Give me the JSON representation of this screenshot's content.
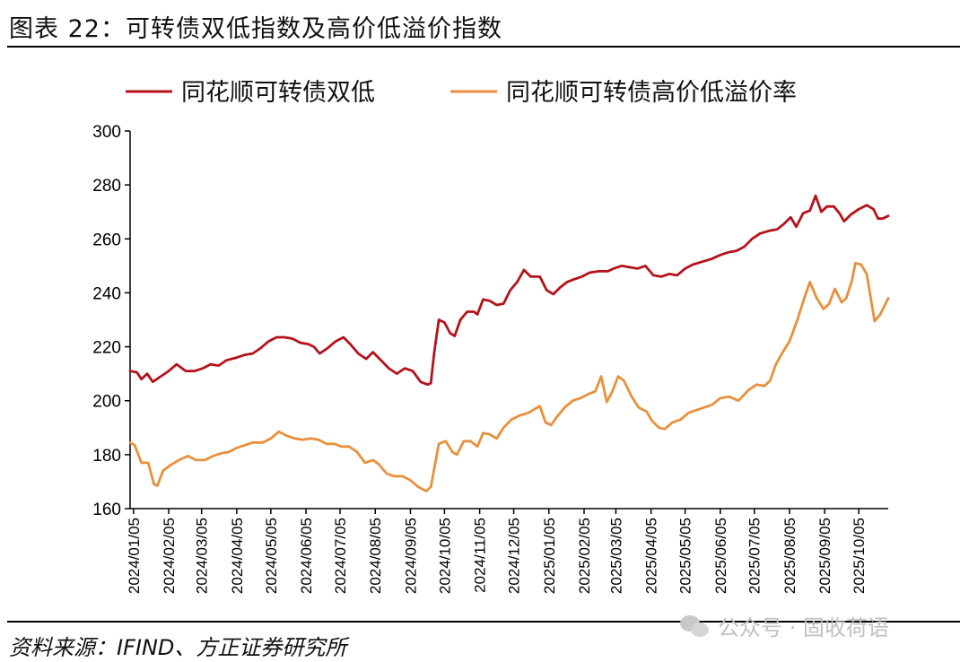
{
  "figure": {
    "title": "图表 22：可转债双低指数及高价低溢价指数",
    "source": "资料来源：IFIND、方正证券研究所",
    "watermark": "公众号 · 固收荷语"
  },
  "colors": {
    "series_dual_low": "#b5121b",
    "series_high_price_low_premium": "#e8903c",
    "axis": "#000000"
  },
  "chart_data": {
    "type": "line",
    "title": "",
    "xlabel": "",
    "ylabel": "",
    "ylim": [
      160,
      300
    ],
    "yticks": [
      160,
      180,
      200,
      220,
      240,
      260,
      280,
      300
    ],
    "x_range": [
      "2024-01-02",
      "2025-10-31"
    ],
    "xtick_labels": [
      "2024/01/05",
      "2024/02/05",
      "2024/03/05",
      "2024/04/05",
      "2024/05/05",
      "2024/06/05",
      "2024/07/05",
      "2024/08/05",
      "2024/09/05",
      "2024/10/05",
      "2024/11/05",
      "2024/12/05",
      "2025/01/05",
      "2025/02/05",
      "2025/03/05",
      "2025/04/05",
      "2025/05/05",
      "2025/06/05",
      "2025/07/05",
      "2025/08/05",
      "2025/09/05",
      "2025/10/05"
    ],
    "grid": false,
    "legend": "top",
    "series": [
      {
        "name": "同花顺可转债双低",
        "points": [
          [
            "2024-01-02",
            211
          ],
          [
            "2024-01-08",
            210.5
          ],
          [
            "2024-01-12",
            208
          ],
          [
            "2024-01-17",
            210
          ],
          [
            "2024-01-22",
            207
          ],
          [
            "2024-01-29",
            209
          ],
          [
            "2024-02-05",
            211
          ],
          [
            "2024-02-12",
            213.5
          ],
          [
            "2024-02-20",
            211
          ],
          [
            "2024-02-28",
            211
          ],
          [
            "2024-03-06",
            212
          ],
          [
            "2024-03-13",
            213.5
          ],
          [
            "2024-03-20",
            213
          ],
          [
            "2024-03-27",
            215
          ],
          [
            "2024-04-05",
            216
          ],
          [
            "2024-04-12",
            217
          ],
          [
            "2024-04-19",
            217.5
          ],
          [
            "2024-04-26",
            219.5
          ],
          [
            "2024-05-03",
            222
          ],
          [
            "2024-05-10",
            223.5
          ],
          [
            "2024-05-17",
            223.5
          ],
          [
            "2024-05-24",
            223
          ],
          [
            "2024-05-31",
            221.5
          ],
          [
            "2024-06-07",
            221
          ],
          [
            "2024-06-12",
            220
          ],
          [
            "2024-06-17",
            217.5
          ],
          [
            "2024-06-24",
            219.5
          ],
          [
            "2024-07-01",
            222
          ],
          [
            "2024-07-08",
            223.5
          ],
          [
            "2024-07-14",
            221
          ],
          [
            "2024-07-21",
            217.5
          ],
          [
            "2024-07-28",
            215.5
          ],
          [
            "2024-08-03",
            218
          ],
          [
            "2024-08-10",
            215
          ],
          [
            "2024-08-17",
            212
          ],
          [
            "2024-08-24",
            210
          ],
          [
            "2024-08-31",
            212
          ],
          [
            "2024-09-07",
            211
          ],
          [
            "2024-09-14",
            207
          ],
          [
            "2024-09-20",
            206
          ],
          [
            "2024-09-23",
            206.5
          ],
          [
            "2024-09-26",
            218
          ],
          [
            "2024-09-30",
            230
          ],
          [
            "2024-10-05",
            229
          ],
          [
            "2024-10-10",
            225
          ],
          [
            "2024-10-14",
            224
          ],
          [
            "2024-10-19",
            230
          ],
          [
            "2024-10-25",
            233
          ],
          [
            "2024-10-31",
            233
          ],
          [
            "2024-11-03",
            232
          ],
          [
            "2024-11-08",
            237.5
          ],
          [
            "2024-11-14",
            237
          ],
          [
            "2024-11-20",
            235.5
          ],
          [
            "2024-11-26",
            236
          ],
          [
            "2024-12-02",
            241
          ],
          [
            "2024-12-08",
            244
          ],
          [
            "2024-12-14",
            248.5
          ],
          [
            "2024-12-20",
            246
          ],
          [
            "2024-12-28",
            246
          ],
          [
            "2025-01-03",
            241
          ],
          [
            "2025-01-09",
            239.5
          ],
          [
            "2025-01-15",
            242
          ],
          [
            "2025-01-21",
            244
          ],
          [
            "2025-01-27",
            245
          ],
          [
            "2025-02-03",
            246
          ],
          [
            "2025-02-10",
            247.5
          ],
          [
            "2025-02-18",
            248
          ],
          [
            "2025-02-26",
            248
          ],
          [
            "2025-03-03",
            249
          ],
          [
            "2025-03-10",
            250
          ],
          [
            "2025-03-17",
            249.5
          ],
          [
            "2025-03-24",
            249
          ],
          [
            "2025-03-31",
            250
          ],
          [
            "2025-04-07",
            246.5
          ],
          [
            "2025-04-14",
            246
          ],
          [
            "2025-04-21",
            247
          ],
          [
            "2025-04-28",
            246.5
          ],
          [
            "2025-05-05",
            249
          ],
          [
            "2025-05-12",
            250.5
          ],
          [
            "2025-05-20",
            251.5
          ],
          [
            "2025-05-28",
            252.5
          ],
          [
            "2025-06-05",
            254
          ],
          [
            "2025-06-12",
            255
          ],
          [
            "2025-06-19",
            255.5
          ],
          [
            "2025-06-26",
            257
          ],
          [
            "2025-07-03",
            260
          ],
          [
            "2025-07-10",
            262
          ],
          [
            "2025-07-18",
            263
          ],
          [
            "2025-07-25",
            263.5
          ],
          [
            "2025-07-31",
            265.5
          ],
          [
            "2025-08-06",
            268
          ],
          [
            "2025-08-11",
            264.5
          ],
          [
            "2025-08-17",
            269.5
          ],
          [
            "2025-08-23",
            270.5
          ],
          [
            "2025-08-28",
            276
          ],
          [
            "2025-09-02",
            270
          ],
          [
            "2025-09-07",
            272
          ],
          [
            "2025-09-13",
            272
          ],
          [
            "2025-09-18",
            269.5
          ],
          [
            "2025-09-22",
            266.5
          ],
          [
            "2025-09-28",
            269
          ],
          [
            "2025-10-05",
            271
          ],
          [
            "2025-10-12",
            272.5
          ],
          [
            "2025-10-18",
            271
          ],
          [
            "2025-10-22",
            267.5
          ],
          [
            "2025-10-26",
            267.5
          ],
          [
            "2025-10-31",
            268.5
          ]
        ]
      },
      {
        "name": "同花顺可转债高价低溢价率",
        "points": [
          [
            "2024-01-02",
            184.5
          ],
          [
            "2024-01-06",
            183.5
          ],
          [
            "2024-01-12",
            177
          ],
          [
            "2024-01-18",
            177
          ],
          [
            "2024-01-23",
            169
          ],
          [
            "2024-01-26",
            168.5
          ],
          [
            "2024-01-31",
            174
          ],
          [
            "2024-02-06",
            176
          ],
          [
            "2024-02-14",
            178
          ],
          [
            "2024-02-22",
            179.5
          ],
          [
            "2024-02-29",
            178
          ],
          [
            "2024-03-08",
            178
          ],
          [
            "2024-03-15",
            179.5
          ],
          [
            "2024-03-22",
            180.5
          ],
          [
            "2024-03-29",
            181
          ],
          [
            "2024-04-05",
            182.5
          ],
          [
            "2024-04-12",
            183.5
          ],
          [
            "2024-04-19",
            184.5
          ],
          [
            "2024-04-28",
            184.5
          ],
          [
            "2024-05-05",
            186
          ],
          [
            "2024-05-12",
            188.5
          ],
          [
            "2024-05-19",
            187
          ],
          [
            "2024-05-26",
            186
          ],
          [
            "2024-06-02",
            185.5
          ],
          [
            "2024-06-09",
            186
          ],
          [
            "2024-06-16",
            185.5
          ],
          [
            "2024-06-23",
            184
          ],
          [
            "2024-06-30",
            184
          ],
          [
            "2024-07-06",
            183
          ],
          [
            "2024-07-13",
            183
          ],
          [
            "2024-07-20",
            181
          ],
          [
            "2024-07-27",
            177
          ],
          [
            "2024-08-03",
            178
          ],
          [
            "2024-08-08",
            176.5
          ],
          [
            "2024-08-15",
            173
          ],
          [
            "2024-08-22",
            172
          ],
          [
            "2024-08-29",
            172
          ],
          [
            "2024-09-05",
            170.5
          ],
          [
            "2024-09-12",
            168
          ],
          [
            "2024-09-19",
            166.5
          ],
          [
            "2024-09-23",
            168
          ],
          [
            "2024-09-30",
            184
          ],
          [
            "2024-10-06",
            185
          ],
          [
            "2024-10-12",
            181
          ],
          [
            "2024-10-16",
            180
          ],
          [
            "2024-10-22",
            185
          ],
          [
            "2024-10-28",
            185
          ],
          [
            "2024-11-03",
            183
          ],
          [
            "2024-11-08",
            188
          ],
          [
            "2024-11-14",
            187.5
          ],
          [
            "2024-11-20",
            186
          ],
          [
            "2024-11-26",
            190
          ],
          [
            "2024-12-03",
            193
          ],
          [
            "2024-12-10",
            194.5
          ],
          [
            "2024-12-18",
            195.5
          ],
          [
            "2024-12-28",
            198
          ],
          [
            "2025-01-02",
            192
          ],
          [
            "2025-01-07",
            191
          ],
          [
            "2025-01-12",
            194
          ],
          [
            "2025-01-19",
            197.5
          ],
          [
            "2025-01-26",
            200
          ],
          [
            "2025-02-02",
            201
          ],
          [
            "2025-02-09",
            202.5
          ],
          [
            "2025-02-15",
            203.5
          ],
          [
            "2025-02-20",
            209
          ],
          [
            "2025-02-25",
            199.5
          ],
          [
            "2025-03-02",
            203.5
          ],
          [
            "2025-03-07",
            209
          ],
          [
            "2025-03-12",
            207.5
          ],
          [
            "2025-03-19",
            201.5
          ],
          [
            "2025-03-25",
            197.5
          ],
          [
            "2025-04-01",
            196
          ],
          [
            "2025-04-06",
            192.5
          ],
          [
            "2025-04-12",
            190
          ],
          [
            "2025-04-17",
            189.5
          ],
          [
            "2025-04-24",
            192
          ],
          [
            "2025-05-01",
            193
          ],
          [
            "2025-05-08",
            195.5
          ],
          [
            "2025-05-15",
            196.5
          ],
          [
            "2025-05-22",
            197.5
          ],
          [
            "2025-05-29",
            198.5
          ],
          [
            "2025-06-05",
            201
          ],
          [
            "2025-06-13",
            201.5
          ],
          [
            "2025-06-21",
            200
          ],
          [
            "2025-06-30",
            204
          ],
          [
            "2025-07-07",
            206
          ],
          [
            "2025-07-14",
            205.5
          ],
          [
            "2025-07-19",
            207.5
          ],
          [
            "2025-07-24",
            213.5
          ],
          [
            "2025-07-30",
            218
          ],
          [
            "2025-08-05",
            222
          ],
          [
            "2025-08-12",
            230
          ],
          [
            "2025-08-18",
            238
          ],
          [
            "2025-08-23",
            244
          ],
          [
            "2025-08-29",
            238
          ],
          [
            "2025-09-04",
            234
          ],
          [
            "2025-09-09",
            236
          ],
          [
            "2025-09-14",
            241.5
          ],
          [
            "2025-09-20",
            236.5
          ],
          [
            "2025-09-24",
            238
          ],
          [
            "2025-09-29",
            244.5
          ],
          [
            "2025-10-02",
            251
          ],
          [
            "2025-10-07",
            250.5
          ],
          [
            "2025-10-12",
            247
          ],
          [
            "2025-10-16",
            237
          ],
          [
            "2025-10-19",
            229.5
          ],
          [
            "2025-10-24",
            232
          ],
          [
            "2025-10-31",
            238
          ]
        ]
      }
    ]
  }
}
